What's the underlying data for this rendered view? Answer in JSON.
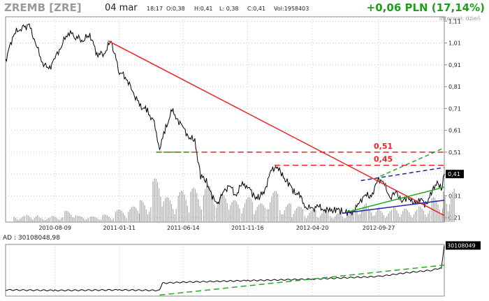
{
  "header": {
    "ticker": "ZREMB [ZRE]",
    "date": "04 mar",
    "time": "18:17",
    "open": "O:0,38",
    "high": "H:0,41",
    "low": "L: 0,38",
    "close": "C:0,41",
    "volume": "Vol:1958403",
    "change": "+0,06 PLN (17,14%)",
    "interval": "Interwał: dzień"
  },
  "colors": {
    "price": "#000000",
    "volume": "#aaaaaa",
    "downtrend": "#ee2222",
    "resistance": "#ee2222",
    "support": "#22aa22",
    "channel_upper": "#2222aa",
    "grid": "#cccccc",
    "label_red": "#ee2222"
  },
  "chart_data": [
    {
      "type": "line",
      "title": "",
      "x_ticks": [
        "2010-08-09",
        "2011-01-11",
        "2011-06-14",
        "2011-11-16",
        "2012-04-20",
        "2012-09-27"
      ],
      "y_ticks": [
        "1,11",
        "1,01",
        "0,91",
        "0,81",
        "0,71",
        "0,61",
        "0,51",
        "0,41",
        "0,31",
        "0,21"
      ],
      "ylim": [
        0.19,
        1.13
      ],
      "xlim": [
        "2010-04-12",
        "2013-03-04"
      ],
      "last_value_label": "0,41",
      "series": [
        {
          "values": [
            [
              "2010-04-12",
              0.93
            ],
            [
              "2010-05-01",
              1.05
            ],
            [
              "2010-05-20",
              1.08
            ],
            [
              "2010-06-08",
              1.09
            ],
            [
              "2010-06-25",
              1.0
            ],
            [
              "2010-07-10",
              0.92
            ],
            [
              "2010-07-25",
              0.89
            ],
            [
              "2010-08-09",
              0.94
            ],
            [
              "2010-08-25",
              1.0
            ],
            [
              "2010-09-10",
              1.06
            ],
            [
              "2010-09-28",
              1.04
            ],
            [
              "2010-10-15",
              1.02
            ],
            [
              "2010-11-01",
              1.05
            ],
            [
              "2010-11-18",
              0.96
            ],
            [
              "2010-12-05",
              0.96
            ],
            [
              "2010-12-22",
              1.02
            ],
            [
              "2011-01-11",
              0.88
            ],
            [
              "2011-01-28",
              0.85
            ],
            [
              "2011-02-14",
              0.78
            ],
            [
              "2011-03-03",
              0.72
            ],
            [
              "2011-03-20",
              0.7
            ],
            [
              "2011-04-05",
              0.64
            ],
            [
              "2011-04-18",
              0.53
            ],
            [
              "2011-05-03",
              0.62
            ],
            [
              "2011-05-18",
              0.7
            ],
            [
              "2011-06-01",
              0.66
            ],
            [
              "2011-06-14",
              0.62
            ],
            [
              "2011-06-28",
              0.58
            ],
            [
              "2011-07-12",
              0.56
            ],
            [
              "2011-07-26",
              0.4
            ],
            [
              "2011-08-09",
              0.38
            ],
            [
              "2011-08-23",
              0.3
            ],
            [
              "2011-09-06",
              0.28
            ],
            [
              "2011-09-20",
              0.33
            ],
            [
              "2011-10-04",
              0.36
            ],
            [
              "2011-10-18",
              0.31
            ],
            [
              "2011-11-01",
              0.36
            ],
            [
              "2011-11-16",
              0.36
            ],
            [
              "2011-11-30",
              0.31
            ],
            [
              "2011-12-14",
              0.3
            ],
            [
              "2011-12-28",
              0.34
            ],
            [
              "2012-01-11",
              0.42
            ],
            [
              "2012-01-25",
              0.45
            ],
            [
              "2012-02-08",
              0.4
            ],
            [
              "2012-02-22",
              0.37
            ],
            [
              "2012-03-07",
              0.33
            ],
            [
              "2012-03-21",
              0.31
            ],
            [
              "2012-04-04",
              0.26
            ],
            [
              "2012-04-20",
              0.25
            ],
            [
              "2012-05-04",
              0.26
            ],
            [
              "2012-05-18",
              0.25
            ],
            [
              "2012-06-01",
              0.24
            ],
            [
              "2012-06-15",
              0.25
            ],
            [
              "2012-06-29",
              0.24
            ],
            [
              "2012-07-13",
              0.23
            ],
            [
              "2012-07-27",
              0.24
            ],
            [
              "2012-08-10",
              0.27
            ],
            [
              "2012-08-24",
              0.32
            ],
            [
              "2012-09-07",
              0.3
            ],
            [
              "2012-09-27",
              0.39
            ],
            [
              "2012-10-11",
              0.36
            ],
            [
              "2012-10-25",
              0.3
            ],
            [
              "2012-11-08",
              0.33
            ],
            [
              "2012-11-22",
              0.28
            ],
            [
              "2012-12-06",
              0.31
            ],
            [
              "2012-12-20",
              0.27
            ],
            [
              "2013-01-04",
              0.3
            ],
            [
              "2013-01-18",
              0.27
            ],
            [
              "2013-02-01",
              0.32
            ],
            [
              "2013-02-15",
              0.38
            ],
            [
              "2013-02-25",
              0.34
            ],
            [
              "2013-03-04",
              0.41
            ]
          ]
        }
      ],
      "annotations": [
        {
          "kind": "downtrend",
          "from": [
            "2010-12-15",
            1.02
          ],
          "to": [
            "2013-03-04",
            0.22
          ]
        },
        {
          "kind": "resistance",
          "label": "0,51",
          "from": [
            "2011-04-10",
            0.51
          ],
          "to": [
            "2013-03-04",
            0.51
          ]
        },
        {
          "kind": "resistance",
          "label": "0,45",
          "from": [
            "2012-01-20",
            0.45
          ],
          "to": [
            "2013-03-04",
            0.45
          ]
        },
        {
          "kind": "support-dashed",
          "from": [
            "2011-04-10",
            0.51
          ],
          "to": [
            "2011-07-10",
            0.51
          ]
        },
        {
          "kind": "channel_upper",
          "from": [
            "2012-08-15",
            0.38
          ],
          "to": [
            "2013-03-04",
            0.44
          ]
        },
        {
          "kind": "channel_upper_green",
          "from": [
            "2012-10-01",
            0.4
          ],
          "to": [
            "2013-03-04",
            0.53
          ]
        },
        {
          "kind": "support_line",
          "from": [
            "2012-07-01",
            0.23
          ],
          "to": [
            "2013-03-04",
            0.35
          ]
        },
        {
          "kind": "support_line_blue",
          "from": [
            "2012-07-01",
            0.23
          ],
          "to": [
            "2013-03-04",
            0.29
          ]
        }
      ],
      "volume": [
        [
          "2010-05-01",
          0.1
        ],
        [
          "2010-06-01",
          0.12
        ],
        [
          "2010-07-01",
          0.08
        ],
        [
          "2010-08-01",
          0.1
        ],
        [
          "2010-09-01",
          0.18
        ],
        [
          "2010-10-01",
          0.1
        ],
        [
          "2010-11-01",
          0.09
        ],
        [
          "2010-12-01",
          0.12
        ],
        [
          "2011-01-01",
          0.2
        ],
        [
          "2011-02-01",
          0.25
        ],
        [
          "2011-03-01",
          0.35
        ],
        [
          "2011-04-01",
          0.7
        ],
        [
          "2011-05-01",
          0.4
        ],
        [
          "2011-06-01",
          0.5
        ],
        [
          "2011-07-01",
          0.55
        ],
        [
          "2011-08-01",
          0.6
        ],
        [
          "2011-09-01",
          0.45
        ],
        [
          "2011-10-01",
          0.35
        ],
        [
          "2011-11-01",
          0.4
        ],
        [
          "2011-12-01",
          0.3
        ],
        [
          "2012-01-01",
          0.5
        ],
        [
          "2012-02-01",
          0.3
        ],
        [
          "2012-03-01",
          0.25
        ],
        [
          "2012-04-01",
          0.2
        ],
        [
          "2012-05-01",
          0.18
        ],
        [
          "2012-06-01",
          0.15
        ],
        [
          "2012-07-01",
          0.15
        ],
        [
          "2012-08-01",
          0.3
        ],
        [
          "2012-09-01",
          0.25
        ],
        [
          "2012-10-01",
          0.2
        ],
        [
          "2012-11-01",
          0.25
        ],
        [
          "2012-12-01",
          0.22
        ],
        [
          "2013-01-01",
          0.25
        ],
        [
          "2013-02-01",
          0.4
        ],
        [
          "2013-03-01",
          0.55
        ]
      ]
    },
    {
      "type": "line",
      "title": "AD : 30108048,98",
      "last_value_label": "30108049",
      "ylim": [
        0,
        100
      ],
      "series": [
        {
          "values": [
            [
              "2010-04-12",
              12
            ],
            [
              "2010-08-09",
              11
            ],
            [
              "2011-01-11",
              12
            ],
            [
              "2011-04-18",
              11
            ],
            [
              "2011-04-25",
              25
            ],
            [
              "2011-06-14",
              27
            ],
            [
              "2011-11-16",
              30
            ],
            [
              "2012-04-20",
              33
            ],
            [
              "2012-09-27",
              38
            ],
            [
              "2012-12-01",
              45
            ],
            [
              "2013-02-01",
              50
            ],
            [
              "2013-02-25",
              55
            ],
            [
              "2013-03-04",
              98
            ]
          ]
        }
      ],
      "annotations": [
        {
          "kind": "support_line",
          "from": [
            "2011-04-18",
            2
          ],
          "to": [
            "2013-03-04",
            60
          ]
        }
      ]
    }
  ]
}
